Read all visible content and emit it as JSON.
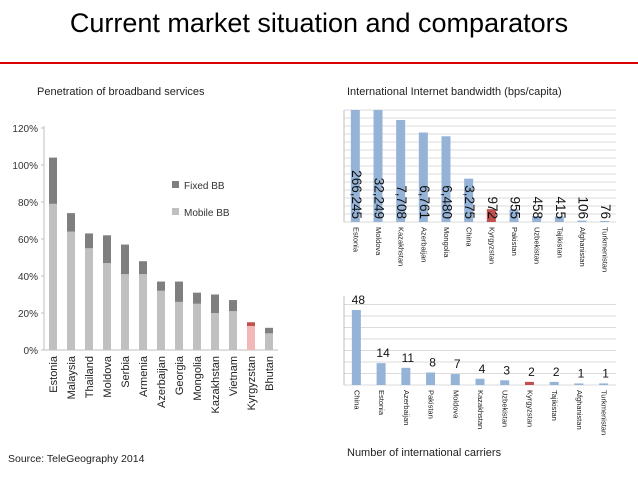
{
  "slide": {
    "title": "Current market situation and comparators",
    "source": "Source: TeleGeography 2014",
    "colors": {
      "accent": "#d80000",
      "fixed": "#7f7f7f",
      "mobile": "#c0c0c0",
      "blue": "#95b3d7",
      "highlight": "#c0504d",
      "highlight_light": "#f2b8b8"
    }
  },
  "chart_data": [
    {
      "type": "bar",
      "stacked": true,
      "title": "Penetration of broadband services",
      "categories": [
        "Estonia",
        "Malaysia",
        "Thailand",
        "Moldova",
        "Serbia",
        "Armenia",
        "Azerbaijan",
        "Georgia",
        "Mongolia",
        "Kazakhstan",
        "Vietnam",
        "Kyrgyzstan",
        "Bhutan"
      ],
      "series": [
        {
          "name": "Mobile BB",
          "values": [
            79,
            64,
            55,
            47,
            41,
            41,
            32,
            26,
            25,
            20,
            21,
            13,
            9
          ]
        },
        {
          "name": "Fixed BB",
          "values": [
            25,
            10,
            8,
            15,
            16,
            7,
            5,
            11,
            6,
            10,
            6,
            2,
            3
          ]
        }
      ],
      "highlight": "Kyrgyzstan",
      "y_ticks": [
        "0%",
        "20%",
        "40%",
        "60%",
        "80%",
        "100%",
        "120%"
      ],
      "ylim": [
        0,
        120
      ],
      "legend": [
        "Fixed BB",
        "Mobile BB"
      ],
      "legend_position": "center-right"
    },
    {
      "type": "bar",
      "title": "International Internet bandwidth (bps/capita)",
      "categories": [
        "Estonia",
        "Moldova",
        "Kazakhstan",
        "Azerbaijan",
        "Mongolia",
        "China",
        "Kyrgyzstan",
        "Pakistan",
        "Uzbekistan",
        "Tajikistan",
        "Afghanistan",
        "Turkmenistan"
      ],
      "values": [
        266245,
        32249,
        7708,
        6761,
        6480,
        3275,
        972,
        955,
        458,
        415,
        106,
        76
      ],
      "labels": [
        "266,245",
        "32,249",
        "7,708",
        "6,761",
        "6,480",
        "3,275",
        "972",
        "955",
        "458",
        "415",
        "106",
        "76"
      ],
      "highlight": "Kyrgyzstan",
      "grid": true
    },
    {
      "type": "bar",
      "title": "Number of international carriers",
      "categories": [
        "China",
        "Estonia",
        "Azerbaijan",
        "Pakistan",
        "Moldova",
        "Kazakhstan",
        "Uzbekistan",
        "Kyrgyzstan",
        "Tajikistan",
        "Afghanistan",
        "Turkmenistan"
      ],
      "values": [
        48,
        14,
        11,
        8,
        7,
        4,
        3,
        2,
        2,
        1,
        1
      ],
      "labels": [
        "48",
        "14",
        "11",
        "8",
        "7",
        "4",
        "3",
        "2",
        "2",
        "1",
        "1"
      ],
      "highlight": "Kyrgyzstan",
      "grid": true
    }
  ]
}
